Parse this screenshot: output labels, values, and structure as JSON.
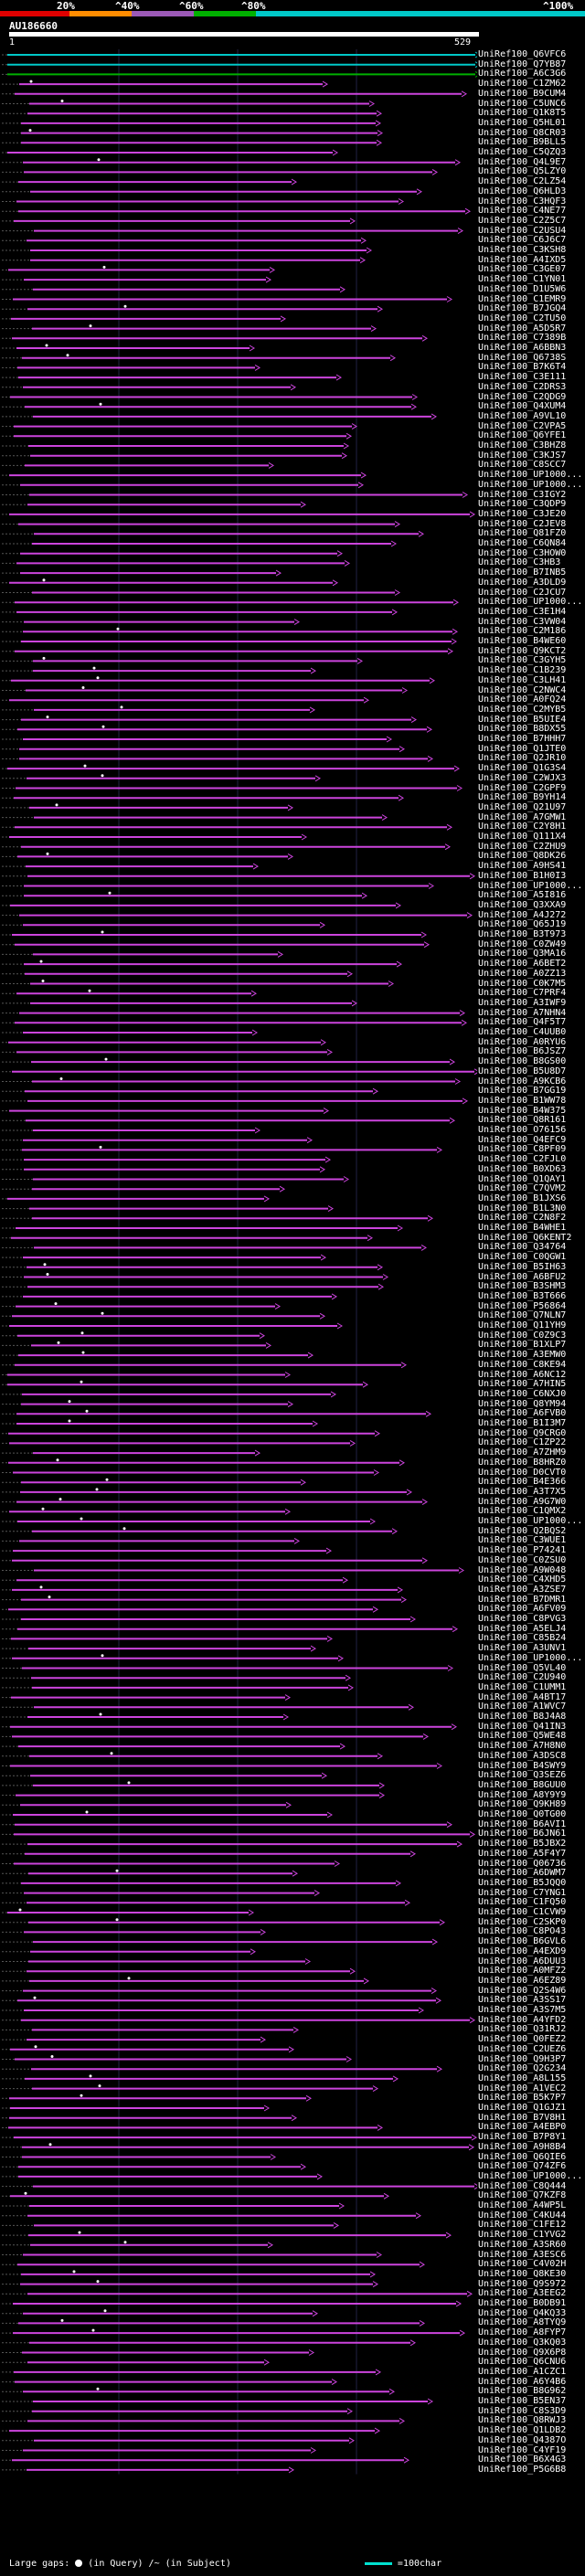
{
  "scale": {
    "ticks": [
      "20%",
      "^40%",
      "^60%",
      "^80%",
      "^100%"
    ],
    "colors": [
      "#e00000",
      "#ff8c00",
      "#9b59b6",
      "#00b000",
      "#00c8c8"
    ]
  },
  "query": {
    "name": "AU186660",
    "start": "1",
    "end": "529"
  },
  "hits": [
    "UniRef100_Q6VFC6",
    "UniRef100_Q7YB87",
    "UniRef100_A6C3G6",
    "UniRef100_C1ZM62",
    "UniRef100_B9CUM4",
    "UniRef100_C5UNC6",
    "UniRef100_Q1K8T5",
    "UniRef100_Q5HL01",
    "UniRef100_Q8CR03",
    "UniRef100_B9BLL5",
    "UniRef100_C5QZQ3",
    "UniRef100_Q4L9E7",
    "UniRef100_Q5LZY0",
    "UniRef100_C2LZ54",
    "UniRef100_Q6HLD3",
    "UniRef100_C3HQF3",
    "UniRef100_C4NE77",
    "UniRef100_C2Z5C7",
    "UniRef100_C2USU4",
    "UniRef100_C6J6C7",
    "UniRef100_C3KSH8",
    "UniRef100_A4IXD5",
    "UniRef100_C3GE07",
    "UniRef100_C1YN01",
    "UniRef100_D1U5W6",
    "UniRef100_C1EMR9",
    "UniRef100_B7JGQ4",
    "UniRef100_C2TU50",
    "UniRef100_A5D5R7",
    "UniRef100_C7389B",
    "UniRef100_A6BBN3",
    "UniRef100_Q6738S",
    "UniRef100_B7K6T4",
    "UniRef100_C3E111",
    "UniRef100_C2DRS3",
    "UniRef100_C2QDG9",
    "UniRef100_Q4XUM4",
    "UniRef100_A9VL10",
    "UniRef100_C2VPA5",
    "UniRef100_Q6YFE1",
    "UniRef100_C3BHZ8",
    "UniRef100_C3KJS7",
    "UniRef100_C8SCC7",
    "UniRef100_UP1000...",
    "UniRef100_UP1000...",
    "UniRef100_C3IGY2",
    "UniRef100_C3QDP9",
    "UniRef100_C3JE20",
    "UniRef100_C2JEV8",
    "UniRef100_Q81FZ0",
    "UniRef100_C6QN84",
    "UniRef100_C3HOW0",
    "UniRef100_C3HB3",
    "UniRef100_B7INB5",
    "UniRef100_A3DLD9",
    "UniRef100_C2JCU7",
    "UniRef100_UP1000...",
    "UniRef100_C3E1H4",
    "UniRef100_C3VW04",
    "UniRef100_C2M186",
    "UniRef100_B4WE60",
    "UniRef100_Q9KCT2",
    "UniRef100_C3GYH5",
    "UniRef100_C1B239",
    "UniRef100_C3LH41",
    "UniRef100_C2NWC4",
    "UniRef100_A0FQ24",
    "UniRef100_C2MYB5",
    "UniRef100_B5UIE4",
    "UniRef100_B8DX55",
    "UniRef100_B7HHH7",
    "UniRef100_Q1JTE0",
    "UniRef100_Q2JR10",
    "UniRef100_Q1G3S4",
    "UniRef100_C2WJX3",
    "UniRef100_C2GPF9",
    "UniRef100_B9YH14",
    "UniRef100_Q21U97",
    "UniRef100_A7GMW1",
    "UniRef100_C2Y8H1",
    "UniRef100_Q111X4",
    "UniRef100_C2ZHU9",
    "UniRef100_Q8DK26",
    "UniRef100_A9HS41",
    "UniRef100_B1H0I3",
    "UniRef100_UP1000...",
    "UniRef100_A5I816",
    "UniRef100_Q3XXA9",
    "UniRef100_A4J272",
    "UniRef100_Q65J19",
    "UniRef100_B3T973",
    "UniRef100_C0ZW49",
    "UniRef100_Q3MA16",
    "UniRef100_A6BET2",
    "UniRef100_A0ZZ13",
    "UniRef100_C0K7M5",
    "UniRef100_C7PRF4",
    "UniRef100_A3IWF9",
    "UniRef100_A7NHN4",
    "UniRef100_Q4F5T7",
    "UniRef100_C4UUB0",
    "UniRef100_A0RYU6",
    "UniRef100_B6JSZ7",
    "UniRef100_B8GS00",
    "UniRef100_B5U8D7",
    "UniRef100_A9KCB6",
    "UniRef100_B7GG19",
    "UniRef100_B1WW78",
    "UniRef100_B4W375",
    "UniRef100_Q8R161",
    "UniRef100_O76156",
    "UniRef100_Q4EFC9",
    "UniRef100_C8PF09",
    "UniRef100_C2FJL0",
    "UniRef100_B0XD63",
    "UniRef100_Q1QAY1",
    "UniRef100_C7QVM2",
    "UniRef100_B1JXS6",
    "UniRef100_B1L3N0",
    "UniRef100_C2N8F2",
    "UniRef100_B4WHE1",
    "UniRef100_Q6KENT2",
    "UniRef100_Q34764",
    "UniRef100_C0QGW1",
    "UniRef100_B5IH63",
    "UniRef100_A6BFU2",
    "UniRef100_B3SHM3",
    "UniRef100_B3T666",
    "UniRef100_P56864",
    "UniRef100_Q7NLN7",
    "UniRef100_Q11YH9",
    "UniRef100_C0Z9C3",
    "UniRef100_B1XLP7",
    "UniRef100_A3EMW0",
    "UniRef100_C8KE94",
    "UniRef100_A6NC12",
    "UniRef100_A7HIN5",
    "UniRef100_C6NXJ0",
    "UniRef100_Q8YM94",
    "UniRef100_A6FVB0",
    "UniRef100_B1I3M7",
    "UniRef100_Q9CRG0",
    "UniRef100_C1ZP22",
    "UniRef100_A7ZHM9",
    "UniRef100_B8HRZ0",
    "UniRef100_D0CVT0",
    "UniRef100_B4E366",
    "UniRef100_A3T7X5",
    "UniRef100_A9G7W0",
    "UniRef100_C1QMX2",
    "UniRef100_UP1000...",
    "UniRef100_Q2BQS2",
    "UniRef100_C3WUE1",
    "UniRef100_P74241",
    "UniRef100_C0ZSU0",
    "UniRef100_A9W048",
    "UniRef100_C4XHD5",
    "UniRef100_A3ZSE7",
    "UniRef100_B7DMR1",
    "UniRef100_A6FV09",
    "UniRef100_C8PVG3",
    "UniRef100_A5ELJ4",
    "UniRef100_C85B24",
    "UniRef100_A3UNV1",
    "UniRef100_UP1000...",
    "UniRef100_Q5VL40",
    "UniRef100_C2U940",
    "UniRef100_C1UMM1",
    "UniRef100_A4BT17",
    "UniRef100_A1WVC7",
    "UniRef100_B8J4A8",
    "UniRef100_Q41IN3",
    "UniRef100_Q5WE48",
    "UniRef100_A7H8N0",
    "UniRef100_A3DSC8",
    "UniRef100_B4SWY9",
    "UniRef100_Q3SEZ6",
    "UniRef100_B8GUU0",
    "UniRef100_A8Y9Y9",
    "UniRef100_Q9KH89",
    "UniRef100_Q0TG00",
    "UniRef100_B6AVI1",
    "UniRef100_B6JN61",
    "UniRef100_B5JBX2",
    "UniRef100_A5F4Y7",
    "UniRef100_Q06736",
    "UniRef100_A6DWM7",
    "UniRef100_B5JQQ0",
    "UniRef100_C7YNG1",
    "UniRef100_C1FQ50",
    "UniRef100_C1CVW9",
    "UniRef100_C2SKP0",
    "UniRef100_C8PO43",
    "UniRef100_B6GVL6",
    "UniRef100_A4EXD9",
    "UniRef100_A6DUU3",
    "UniRef100_A0MFZ2",
    "UniRef100_A6EZ89",
    "UniRef100_Q2S4W6",
    "UniRef100_A3SS17",
    "UniRef100_A3S7M5",
    "UniRef100_A4YFD2",
    "UniRef100_Q31RJ2",
    "UniRef100_Q0FEZ2",
    "UniRef100_C2UEZ6",
    "UniRef100_Q9H3P7",
    "UniRef100_Q2G234",
    "UniRef100_A8L155",
    "UniRef100_A1VEC2",
    "UniRef100_B5K7P7",
    "UniRef100_Q1GJZ1",
    "UniRef100_B7V8H1",
    "UniRef100_A4EBP0",
    "UniRef100_B7P8Y1",
    "UniRef100_A9H8B4",
    "UniRef100_Q6QIE6",
    "UniRef100_Q74ZF6",
    "UniRef100_UP1000...",
    "UniRef100_C8Q444",
    "UniRef100_Q7KZF8",
    "UniRef100_A4WP5L",
    "UniRef100_C4KU44",
    "UniRef100_C1FE12",
    "UniRef100_C1YVG2",
    "UniRef100_A3SR60",
    "UniRef100_A3ESC6",
    "UniRef100_C4V02H",
    "UniRef100_Q8KE30",
    "UniRef100_Q9S972",
    "UniRef100_A3EEG2",
    "UniRef100_B0DB91",
    "UniRef100_Q4KQ33",
    "UniRef100_A8TYQ9",
    "UniRef100_A8FYP7",
    "UniRef100_Q3KQ03",
    "UniRef100_Q9X6P8",
    "UniRef100_Q6CNU6",
    "UniRef100_A1CZC1",
    "UniRef100_A6Y4B6",
    "UniRef100_B8G962",
    "UniRef100_B5EN37",
    "UniRef100_C8S3D9",
    "UniRef100_Q8RWJ3",
    "UniRef100_Q1LDB2",
    "UniRef100_Q4387O",
    "UniRef100_C4YF19",
    "UniRef100_B6X4G3",
    "UniRef100_P5G6B8"
  ],
  "legend": {
    "large_gaps": "Large gaps:",
    "in_query": "(in Query)",
    "in_subject": "/~ (in Subject)",
    "bar_scale": "=100char"
  }
}
